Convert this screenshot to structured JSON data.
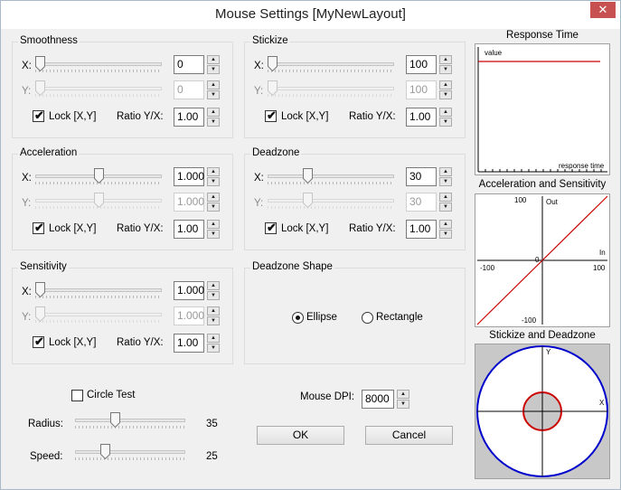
{
  "window": {
    "title": "Mouse Settings [MyNewLayout]",
    "close_glyph": "✕"
  },
  "smoothness": {
    "title": "Smoothness",
    "x_label": "X:",
    "y_label": "Y:",
    "x_value": "0",
    "y_value": "0",
    "lock_label": "Lock [X,Y]",
    "lock_checked": true,
    "ratio_label": "Ratio Y/X:",
    "ratio_value": "1.00",
    "x_slider_level": 0.0,
    "y_slider_level": 0.0
  },
  "stickize": {
    "title": "Stickize",
    "x_label": "X:",
    "y_label": "Y:",
    "x_value": "100",
    "y_value": "100",
    "lock_label": "Lock [X,Y]",
    "lock_checked": true,
    "ratio_label": "Ratio Y/X:",
    "ratio_value": "1.00",
    "x_slider_level": 0.0,
    "y_slider_level": 0.0
  },
  "acceleration": {
    "title": "Acceleration",
    "x_label": "X:",
    "y_label": "Y:",
    "x_value": "1.000",
    "y_value": "1.000",
    "lock_label": "Lock [X,Y]",
    "lock_checked": true,
    "ratio_label": "Ratio Y/X:",
    "ratio_value": "1.00",
    "x_slider_level": 0.5,
    "y_slider_level": 0.5
  },
  "deadzone": {
    "title": "Deadzone",
    "x_label": "X:",
    "y_label": "Y:",
    "x_value": "30",
    "y_value": "30",
    "lock_label": "Lock [X,Y]",
    "lock_checked": true,
    "ratio_label": "Ratio Y/X:",
    "ratio_value": "1.00",
    "x_slider_level": 0.3,
    "y_slider_level": 0.3
  },
  "sensitivity": {
    "title": "Sensitivity",
    "x_label": "X:",
    "y_label": "Y:",
    "x_value": "1.000",
    "y_value": "1.000",
    "lock_label": "Lock [X,Y]",
    "lock_checked": true,
    "ratio_label": "Ratio Y/X:",
    "ratio_value": "1.00",
    "x_slider_level": 0.0,
    "y_slider_level": 0.0
  },
  "deadzone_shape": {
    "title": "Deadzone Shape",
    "options": [
      "Ellipse",
      "Rectangle"
    ],
    "selected": "Ellipse"
  },
  "circle_test": {
    "label": "Circle Test",
    "checked": false,
    "radius_label": "Radius:",
    "radius_value": "35",
    "radius_level": 0.35,
    "speed_label": "Speed:",
    "speed_value": "25",
    "speed_level": 0.25
  },
  "dpi": {
    "label": "Mouse DPI:",
    "value": "8000"
  },
  "buttons": {
    "ok": "OK",
    "cancel": "Cancel"
  },
  "response_time": {
    "title": "Response Time",
    "legend": "value",
    "axis_label": "response time",
    "line_color": "#cc0000"
  },
  "accel_plot": {
    "title": "Acceleration and Sensitivity",
    "out_label": "Out",
    "in_label": "In",
    "y_max": "100",
    "y_min": "-100",
    "x_min": "-100",
    "x_max": "100",
    "origin": "0",
    "line_color": "#cc0000"
  },
  "stickize_plot": {
    "title": "Stickize and Deadzone",
    "x_label": "X",
    "y_label": "Y",
    "outer_color": "#0000cc",
    "inner_color": "#cc0000"
  },
  "icons": {
    "spin_up": "▲",
    "spin_down": "▼",
    "check": "✔"
  }
}
